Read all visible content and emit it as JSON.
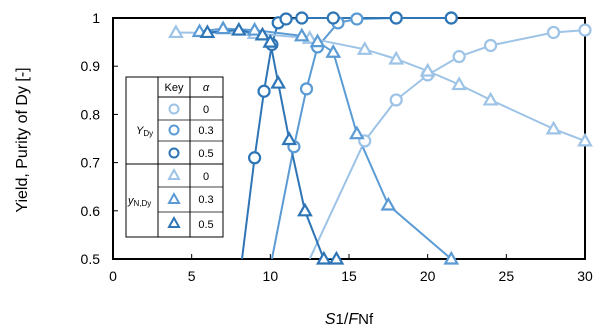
{
  "chart_data": {
    "type": "line",
    "xlabel": {
      "main": "S",
      "sub": "1",
      "sep": "/",
      "main2": "F",
      "sub2": "Nf"
    },
    "ylabel": "Yield, Purity of Dy [-]",
    "xlim": [
      0,
      30
    ],
    "ylim": [
      0.5,
      1.0
    ],
    "xticks": [
      "0",
      "5",
      "10",
      "15",
      "20",
      "25",
      "30"
    ],
    "yticks": [
      "0.5",
      "0.6",
      "0.7",
      "0.8",
      "0.9",
      "1"
    ],
    "legend": {
      "position": "left",
      "header_key": "Key",
      "header_alpha": "α",
      "group_yield": "Y",
      "group_yield_sub": "Dy",
      "group_purity": "y",
      "group_purity_sub": "N,Dy",
      "rows": [
        "0",
        "0.3",
        "0.5",
        "0",
        "0.3",
        "0.5"
      ]
    },
    "colors": {
      "alpha_0": "#9dc3e6",
      "alpha_0_3": "#5b9bd5",
      "alpha_0_5": "#2e75b6"
    },
    "series": [
      {
        "name": "Y_Dy α=0",
        "marker": "circle",
        "color": "#9dc3e6",
        "x": [
          12.5,
          16,
          18,
          20,
          22,
          24,
          28,
          30
        ],
        "y": [
          0.5,
          0.745,
          0.83,
          0.882,
          0.92,
          0.943,
          0.97,
          0.975
        ]
      },
      {
        "name": "Y_Dy α=0.3",
        "marker": "circle",
        "color": "#5b9bd5",
        "x": [
          10.1,
          11.5,
          12.3,
          13,
          14.3,
          15.5,
          18,
          21.5
        ],
        "y": [
          0.5,
          0.733,
          0.853,
          0.94,
          0.99,
          0.998,
          1.0,
          1.0
        ]
      },
      {
        "name": "Y_Dy α=0.5",
        "marker": "circle",
        "color": "#2e75b6",
        "x": [
          8.2,
          9.0,
          9.6,
          10.1,
          10.5,
          11,
          12,
          14,
          18,
          21.5
        ],
        "y": [
          0.5,
          0.71,
          0.848,
          0.945,
          0.99,
          0.998,
          1.0,
          1.0,
          1.0,
          1.0
        ]
      },
      {
        "name": "y_N,Dy α=0",
        "marker": "triangle",
        "color": "#9dc3e6",
        "x": [
          4,
          9,
          12.5,
          16,
          18,
          20,
          22,
          24,
          28,
          30
        ],
        "y": [
          0.97,
          0.968,
          0.958,
          0.935,
          0.915,
          0.89,
          0.862,
          0.83,
          0.77,
          0.745
        ]
      },
      {
        "name": "y_N,Dy α=0.3",
        "marker": "triangle",
        "color": "#5b9bd5",
        "x": [
          5.5,
          7,
          9,
          12,
          13,
          14,
          15.5,
          17.5,
          21.5
        ],
        "y": [
          0.972,
          0.978,
          0.975,
          0.963,
          0.951,
          0.929,
          0.76,
          0.612,
          0.5
        ]
      },
      {
        "name": "y_N,Dy α=0.5",
        "marker": "triangle",
        "color": "#2e75b6",
        "x": [
          6,
          8,
          9.5,
          10,
          10.5,
          11.2,
          12.2,
          13.4,
          14.2
        ],
        "y": [
          0.97,
          0.975,
          0.965,
          0.95,
          0.865,
          0.748,
          0.6,
          0.5,
          0.5
        ]
      }
    ]
  }
}
